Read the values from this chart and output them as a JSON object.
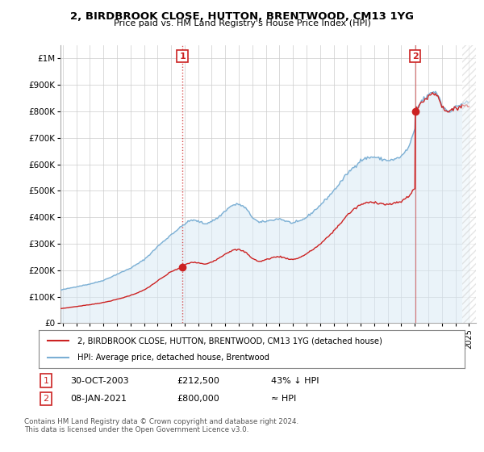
{
  "title": "2, BIRDBROOK CLOSE, HUTTON, BRENTWOOD, CM13 1YG",
  "subtitle": "Price paid vs. HM Land Registry's House Price Index (HPI)",
  "hpi_color": "#7bafd4",
  "hpi_fill_color": "#d6e8f5",
  "price_color": "#cc2222",
  "xlim_start": 1994.83,
  "xlim_end": 2025.5,
  "ylim_min": 0,
  "ylim_max": 1050000,
  "yticks": [
    0,
    100000,
    200000,
    300000,
    400000,
    500000,
    600000,
    700000,
    800000,
    900000,
    1000000
  ],
  "ytick_labels": [
    "£0",
    "£100K",
    "£200K",
    "£300K",
    "£400K",
    "£500K",
    "£600K",
    "£700K",
    "£800K",
    "£900K",
    "£1M"
  ],
  "transaction1_date": 2003.83,
  "transaction1_price": 212500,
  "transaction1_label": "1",
  "transaction2_date": 2021.03,
  "transaction2_price": 800000,
  "transaction2_label": "2",
  "legend_price_label": "2, BIRDBROOK CLOSE, HUTTON, BRENTWOOD, CM13 1YG (detached house)",
  "legend_hpi_label": "HPI: Average price, detached house, Brentwood",
  "ann1_box": "1",
  "ann1_date": "30-OCT-2003",
  "ann1_price": "£212,500",
  "ann1_pct": "43% ↓ HPI",
  "ann2_box": "2",
  "ann2_date": "08-JAN-2021",
  "ann2_price": "£800,000",
  "ann2_pct": "≈ HPI",
  "footer": "Contains HM Land Registry data © Crown copyright and database right 2024.\nThis data is licensed under the Open Government Licence v3.0.",
  "background_color": "#ffffff",
  "grid_color": "#cccccc"
}
